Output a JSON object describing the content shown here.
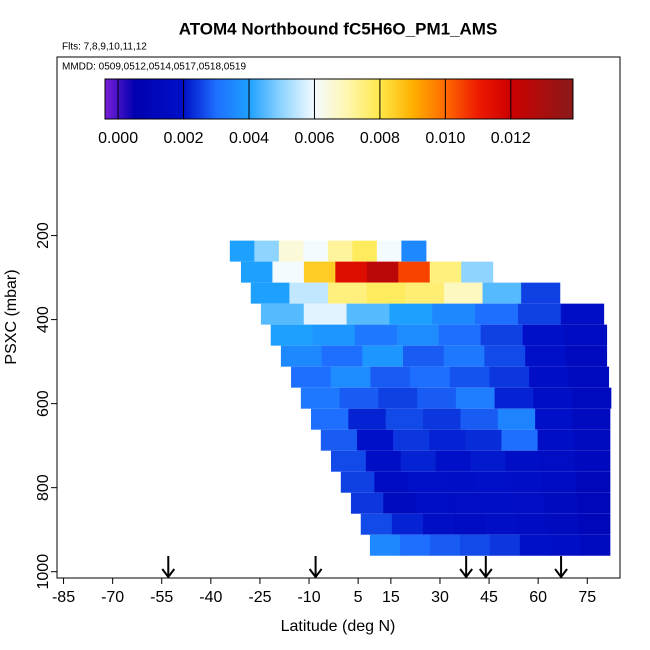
{
  "chart_data": {
    "type": "curtain",
    "title": "ATOM4 Northbound fC5H6O_PM1_AMS",
    "flights_label": "Flts: 7,8,9,10,11,12",
    "dates_label": "MMDD: 0509,0512,0514,0517,0518,0519",
    "x_label": "Latitude (deg N)",
    "y_label": "PSXC (mbar)",
    "xlim": [
      -87,
      85
    ],
    "xticks": [
      -85,
      -70,
      -55,
      -40,
      -25,
      -10,
      5,
      15,
      30,
      45,
      60,
      75
    ],
    "ylim": [
      1015,
      -225
    ],
    "yticks": [
      200,
      400,
      600,
      800,
      1000
    ],
    "colorbar_lim": [
      -0.0004,
      0.0139
    ],
    "colorbar_ticks": [
      {
        "value": 0,
        "label": "0.000"
      },
      {
        "value": 0.002,
        "label": "0.002"
      },
      {
        "value": 0.004,
        "label": "0.004"
      },
      {
        "value": 0.006,
        "label": "0.006"
      },
      {
        "value": 0.008,
        "label": "0.008"
      },
      {
        "value": 0.01,
        "label": "0.010"
      },
      {
        "value": 0.012,
        "label": "0.012"
      }
    ],
    "colorscale": [
      [
        -0.0004,
        "#7a1fd8"
      ],
      [
        0.0005,
        "#0000b0"
      ],
      [
        0.002,
        "#0010c8"
      ],
      [
        0.003,
        "#1e6fff"
      ],
      [
        0.004,
        "#1ea0ff"
      ],
      [
        0.005,
        "#8fd4ff"
      ],
      [
        0.006,
        "#f4fbff"
      ],
      [
        0.007,
        "#fff6b0"
      ],
      [
        0.008,
        "#ffe84a"
      ],
      [
        0.009,
        "#ffb000"
      ],
      [
        0.01,
        "#ff6a00"
      ],
      [
        0.011,
        "#ee1a00"
      ],
      [
        0.012,
        "#cc0000"
      ],
      [
        0.0139,
        "#8a1a1a"
      ]
    ],
    "arrows": [
      -53,
      -8,
      38,
      44,
      67
    ],
    "rows": [
      {
        "pressure": 237,
        "lat_range": [
          -34.2,
          25.7
        ],
        "values": [
          0.004,
          0.005,
          0.0065,
          0.006,
          0.0072,
          0.0078,
          0.006,
          0.0035
        ]
      },
      {
        "pressure": 287,
        "lat_range": [
          -30.8,
          46.1
        ],
        "values": [
          0.004,
          0.006,
          0.0085,
          0.0115,
          0.0125,
          0.0105,
          0.0075,
          0.005
        ]
      },
      {
        "pressure": 337,
        "lat_range": [
          -27.8,
          66.6
        ],
        "values": [
          0.004,
          0.0055,
          0.0075,
          0.0078,
          0.0076,
          0.0068,
          0.0045,
          0.0025
        ]
      },
      {
        "pressure": 387,
        "lat_range": [
          -24.7,
          80.0
        ],
        "values": [
          0.0045,
          0.0058,
          0.0045,
          0.004,
          0.0035,
          0.003,
          0.0025,
          0.0018
        ]
      },
      {
        "pressure": 437,
        "lat_range": [
          -21.7,
          80.9
        ],
        "values": [
          0.004,
          0.0038,
          0.0032,
          0.0036,
          0.003,
          0.0025,
          0.002,
          0.0016
        ]
      },
      {
        "pressure": 487,
        "lat_range": [
          -18.6,
          80.9
        ],
        "values": [
          0.0035,
          0.003,
          0.0038,
          0.0028,
          0.0032,
          0.0026,
          0.002,
          0.0015
        ]
      },
      {
        "pressure": 537,
        "lat_range": [
          -15.5,
          81.5
        ],
        "values": [
          0.003,
          0.0036,
          0.0028,
          0.003,
          0.0027,
          0.0024,
          0.0018,
          0.0014
        ]
      },
      {
        "pressure": 587,
        "lat_range": [
          -12.5,
          82.2
        ],
        "values": [
          0.0032,
          0.0028,
          0.0025,
          0.0028,
          0.0033,
          0.0022,
          0.0018,
          0.0015
        ]
      },
      {
        "pressure": 637,
        "lat_range": [
          -9.4,
          81.9
        ],
        "values": [
          0.003,
          0.0022,
          0.0026,
          0.0024,
          0.0028,
          0.0034,
          0.002,
          0.0015
        ]
      },
      {
        "pressure": 687,
        "lat_range": [
          -6.4,
          81.9
        ],
        "values": [
          0.0028,
          0.002,
          0.0024,
          0.0022,
          0.0023,
          0.003,
          0.0018,
          0.0014
        ]
      },
      {
        "pressure": 737,
        "lat_range": [
          -3.3,
          81.9
        ],
        "values": [
          0.0026,
          0.0018,
          0.0022,
          0.002,
          0.0021,
          0.0019,
          0.0017,
          0.0013
        ]
      },
      {
        "pressure": 787,
        "lat_range": [
          -0.3,
          81.9
        ],
        "values": [
          0.0025,
          0.0016,
          0.002,
          0.0019,
          0.002,
          0.0018,
          0.0016,
          0.0012
        ]
      },
      {
        "pressure": 837,
        "lat_range": [
          2.8,
          81.9
        ],
        "values": [
          0.0024,
          0.0015,
          0.0018,
          0.0017,
          0.0019,
          0.0017,
          0.0015,
          0.0012
        ]
      },
      {
        "pressure": 887,
        "lat_range": [
          5.8,
          81.9
        ],
        "values": [
          0.0026,
          0.0022,
          0.0018,
          0.0016,
          0.0018,
          0.0016,
          0.0014,
          0.0012
        ]
      },
      {
        "pressure": 937,
        "lat_range": [
          8.6,
          81.9
        ],
        "values": [
          0.0035,
          0.003,
          0.0028,
          0.0026,
          0.0024,
          0.002,
          0.0018,
          0.0014
        ]
      }
    ]
  }
}
